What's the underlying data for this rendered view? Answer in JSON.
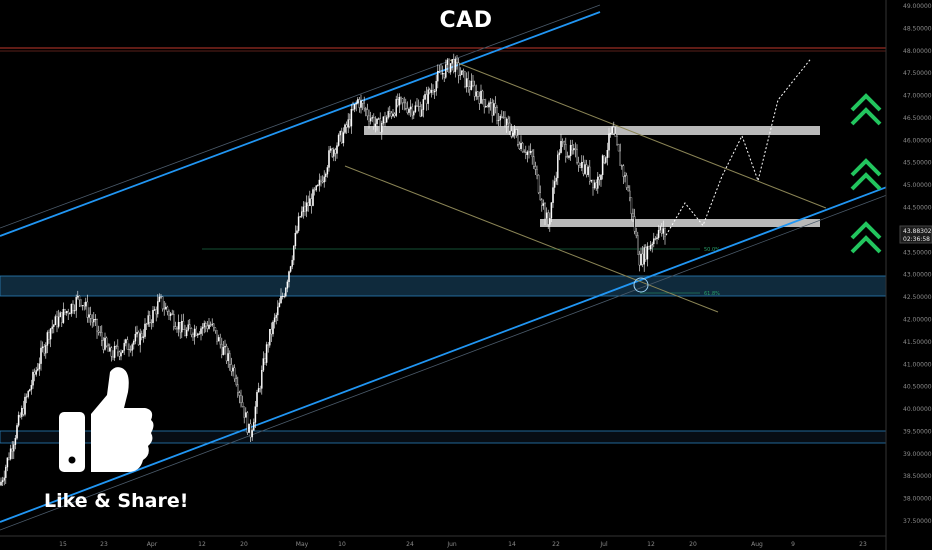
{
  "title": "CAD",
  "cta": {
    "label": "Like & Share!",
    "icon": "thumbs-up-icon"
  },
  "colors": {
    "background": "#000000",
    "channel": "#2196f3",
    "resistance": "#c0392b",
    "arrows": "#22c55e",
    "zone": "#d9d9d9"
  },
  "chart_data": {
    "type": "candlestick",
    "symbol": "CAD",
    "y_range": [
      37.25,
      49.0
    ],
    "y_ticks": [
      "49.00000",
      "48.50000",
      "48.00000",
      "47.50000",
      "47.00000",
      "46.50000",
      "46.00000",
      "45.50000",
      "45.00000",
      "44.50000",
      "44.00000",
      "43.50000",
      "43.00000",
      "42.50000",
      "42.00000",
      "41.50000",
      "41.00000",
      "40.50000",
      "40.00000",
      "39.50000",
      "39.00000",
      "38.50000",
      "38.00000",
      "37.50000"
    ],
    "x_ticks": [
      "15",
      "23",
      "Apr",
      "12",
      "20",
      "May",
      "10",
      "24",
      "Jun",
      "14",
      "22",
      "Jul",
      "12",
      "20",
      "Aug",
      "9",
      "23"
    ],
    "last_price": "43.88302",
    "countdown": "02:36:58",
    "fib_levels": [
      {
        "label": "50.0%",
        "price": 43.5
      },
      {
        "label": "61.8%",
        "price": 42.6
      }
    ],
    "zones": [
      {
        "name": "upper-zone",
        "from": 46.0,
        "to": 46.15
      },
      {
        "name": "middle-zone",
        "from": 43.9,
        "to": 44.08
      }
    ],
    "support_band": [
      42.45,
      43.0
    ],
    "lower_band": [
      39.2,
      39.5
    ],
    "resistance_line": 47.9,
    "close_path": [
      [
        0,
        38.3
      ],
      [
        20,
        39.8
      ],
      [
        50,
        41.8
      ],
      [
        80,
        42.5
      ],
      [
        110,
        41.2
      ],
      [
        140,
        41.6
      ],
      [
        160,
        42.4
      ],
      [
        185,
        41.7
      ],
      [
        210,
        41.9
      ],
      [
        235,
        40.8
      ],
      [
        250,
        39.4
      ],
      [
        268,
        41.5
      ],
      [
        285,
        42.7
      ],
      [
        300,
        44.3
      ],
      [
        318,
        44.9
      ],
      [
        330,
        45.7
      ],
      [
        345,
        46.2
      ],
      [
        358,
        46.9
      ],
      [
        378,
        46.3
      ],
      [
        398,
        46.8
      ],
      [
        420,
        46.7
      ],
      [
        438,
        47.4
      ],
      [
        452,
        47.75
      ],
      [
        466,
        47.3
      ],
      [
        488,
        46.8
      ],
      [
        512,
        46.2
      ],
      [
        532,
        45.6
      ],
      [
        548,
        44.1
      ],
      [
        560,
        45.9
      ],
      [
        578,
        45.6
      ],
      [
        596,
        45.0
      ],
      [
        612,
        46.2
      ],
      [
        628,
        44.9
      ],
      [
        640,
        43.3
      ],
      [
        648,
        43.6
      ],
      [
        658,
        44.0
      ],
      [
        666,
        43.88
      ]
    ],
    "projection": [
      [
        666,
        43.88
      ],
      [
        685,
        44.6
      ],
      [
        703,
        44.1
      ],
      [
        722,
        45.2
      ],
      [
        742,
        46.1
      ],
      [
        758,
        45.1
      ],
      [
        778,
        46.9
      ],
      [
        810,
        47.8
      ]
    ]
  }
}
